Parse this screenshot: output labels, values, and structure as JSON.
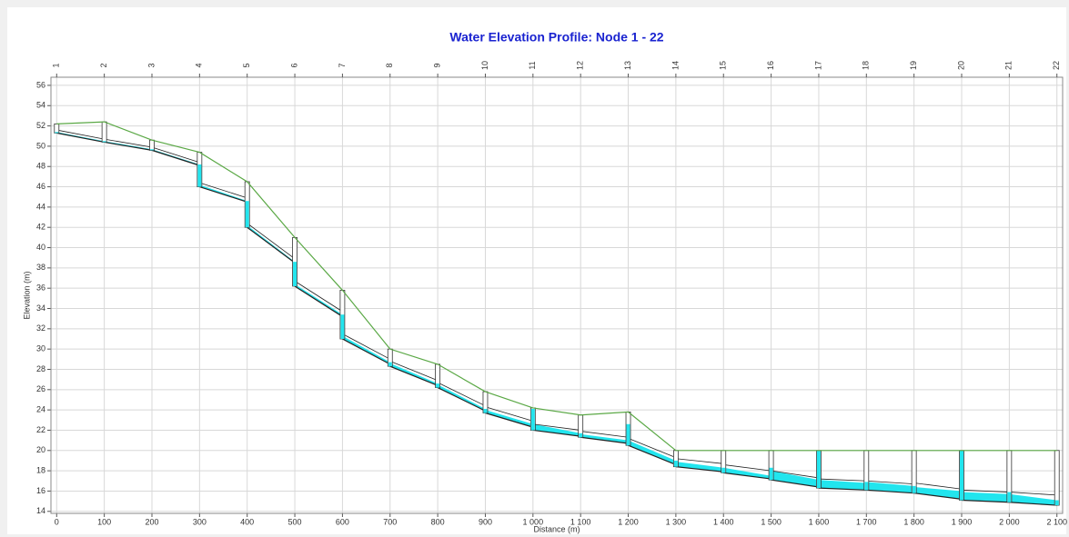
{
  "chart_data": {
    "type": "profile",
    "title": "Water Elevation Profile: Node 1 - 22",
    "xlabel": "Distance (m)",
    "ylabel": "Elevation (m)",
    "xlim": [
      -12,
      2112
    ],
    "ylim": [
      13.8,
      56.8
    ],
    "xticks": [
      0,
      100,
      200,
      300,
      400,
      500,
      600,
      700,
      800,
      900,
      {
        "value": 1000,
        "label": "1 000"
      },
      {
        "value": 1100,
        "label": "1 100"
      },
      {
        "value": 1200,
        "label": "1 200"
      },
      {
        "value": 1300,
        "label": "1 300"
      },
      {
        "value": 1400,
        "label": "1 400"
      },
      {
        "value": 1500,
        "label": "1 500"
      },
      {
        "value": 1600,
        "label": "1 600"
      },
      {
        "value": 1700,
        "label": "1 700"
      },
      {
        "value": 1800,
        "label": "1 800"
      },
      {
        "value": 1900,
        "label": "1 900"
      },
      {
        "value": 2000,
        "label": "2 000"
      },
      {
        "value": 2100,
        "label": "2 100"
      }
    ],
    "yticks": [
      14,
      16,
      18,
      20,
      22,
      24,
      26,
      28,
      30,
      32,
      34,
      36,
      38,
      40,
      42,
      44,
      46,
      48,
      50,
      52,
      54,
      56
    ],
    "grid": true,
    "nodes": {
      "names": [
        "1",
        "2",
        "3",
        "4",
        "5",
        "6",
        "7",
        "8",
        "9",
        "10",
        "11",
        "12",
        "13",
        "14",
        "15",
        "16",
        "17",
        "18",
        "19",
        "20",
        "21",
        "22"
      ],
      "x": [
        0,
        100,
        200,
        300,
        400,
        500,
        600,
        700,
        800,
        900,
        1000,
        1100,
        1200,
        1300,
        1400,
        1500,
        1600,
        1700,
        1800,
        1900,
        2000,
        2100
      ],
      "invert": [
        51.3,
        50.4,
        49.6,
        46.0,
        42.0,
        36.2,
        31.0,
        28.3,
        26.2,
        23.7,
        22.0,
        21.3,
        20.5,
        18.4,
        17.8,
        17.1,
        16.3,
        16.1,
        15.8,
        15.1,
        14.9,
        14.6
      ],
      "water": [
        51.4,
        50.5,
        49.7,
        48.2,
        44.6,
        38.6,
        33.4,
        28.7,
        26.6,
        24.1,
        24.1,
        21.7,
        22.6,
        19.0,
        18.3,
        18.3,
        20.0,
        16.9,
        16.5,
        20.0,
        15.9,
        15.1
      ],
      "ground": [
        52.2,
        52.4,
        50.6,
        49.4,
        46.5,
        41.0,
        35.8,
        30.0,
        28.5,
        25.8,
        24.2,
        23.5,
        23.8,
        20.0,
        20,
        20,
        20,
        20,
        20,
        20,
        20,
        20
      ]
    },
    "links": {
      "up_invert": [
        51.3,
        50.4,
        49.6,
        46.0,
        42.0,
        36.2,
        31.0,
        28.3,
        26.2,
        23.7,
        22.0,
        21.3,
        20.5,
        18.4,
        17.8,
        17.1,
        16.3,
        16.1,
        15.8,
        15.1,
        14.9
      ],
      "down_invert": [
        50.4,
        49.6,
        48.1,
        44.5,
        38.5,
        33.2,
        28.5,
        26.4,
        23.9,
        22.3,
        21.4,
        20.7,
        18.6,
        17.9,
        17.2,
        16.4,
        16.1,
        15.8,
        15.2,
        14.9,
        14.6
      ],
      "up_crown": [
        51.6,
        50.7,
        49.9,
        46.4,
        42.4,
        36.7,
        31.5,
        28.8,
        26.7,
        24.3,
        22.6,
        21.9,
        21.2,
        19.2,
        18.6,
        18.0,
        17.2,
        17.0,
        16.8,
        16.1,
        15.9
      ],
      "down_crown": [
        50.7,
        49.9,
        48.4,
        44.9,
        38.9,
        33.7,
        29.0,
        26.9,
        24.4,
        22.9,
        22.0,
        21.3,
        19.3,
        18.7,
        18.0,
        17.3,
        17.0,
        16.7,
        16.2,
        15.9,
        15.6
      ],
      "up_water": [
        51.4,
        50.5,
        49.7,
        46.2,
        42.2,
        36.4,
        31.3,
        28.6,
        26.5,
        24.0,
        22.6,
        21.6,
        21.0,
        18.9,
        18.3,
        18.0,
        17.1,
        16.9,
        16.4,
        15.9,
        15.7
      ],
      "down_water": [
        50.5,
        49.7,
        48.2,
        44.6,
        38.6,
        33.4,
        28.7,
        26.6,
        24.1,
        22.6,
        21.7,
        21.0,
        19.0,
        18.3,
        17.5,
        17.1,
        16.8,
        16.5,
        16.0,
        15.7,
        15.1
      ]
    },
    "colors": {
      "water": "#22e5ee",
      "ground": "#5aa845",
      "conduit": "#222222",
      "title": "#1a23d0"
    }
  }
}
